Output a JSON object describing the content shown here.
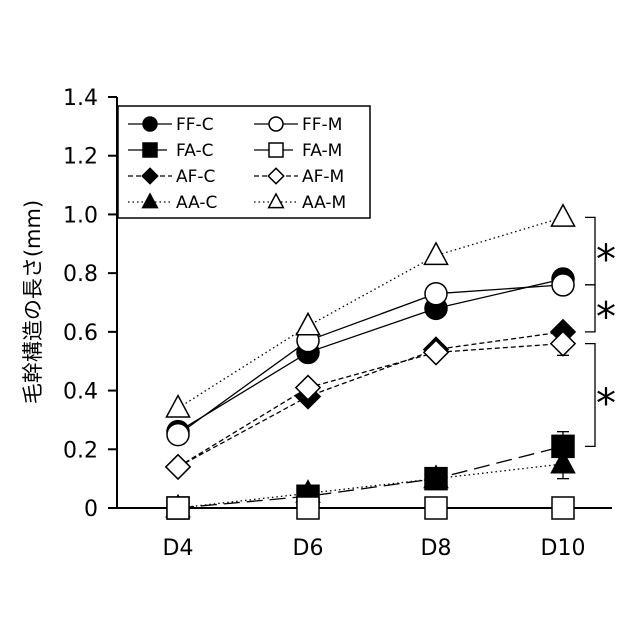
{
  "chart_data": {
    "type": "line",
    "categories": [
      "D4",
      "D6",
      "D8",
      "D10"
    ],
    "ylabel": "毛幹構造の長さ(mm)",
    "ylim": [
      0,
      1.4
    ],
    "yticks": [
      "0",
      "0.2",
      "0.4",
      "0.6",
      "0.8",
      "1.0",
      "1.2",
      "1.4"
    ],
    "yticks_values": [
      0,
      0.2,
      0.4,
      0.6,
      0.8,
      1.0,
      1.2,
      1.4
    ],
    "grid": false,
    "legend_position": "top-left",
    "series": [
      {
        "name": "FF-C",
        "values": [
          0.26,
          0.53,
          0.68,
          0.78
        ],
        "marker": "circle",
        "fill": "black",
        "line": "solid"
      },
      {
        "name": "FF-M",
        "values": [
          0.25,
          0.57,
          0.73,
          0.76
        ],
        "marker": "circle",
        "fill": "white",
        "line": "solid"
      },
      {
        "name": "FA-C",
        "values": [
          0.0,
          0.04,
          0.1,
          0.21
        ],
        "marker": "square",
        "fill": "black",
        "line": "long-dash"
      },
      {
        "name": "FA-M",
        "values": [
          0.0,
          0.0,
          0.0,
          0.0
        ],
        "marker": "square",
        "fill": "white",
        "line": "long-dash"
      },
      {
        "name": "AF-C",
        "values": [
          0.14,
          0.38,
          0.54,
          0.6
        ],
        "marker": "diamond",
        "fill": "black",
        "line": "short-dash"
      },
      {
        "name": "AF-M",
        "values": [
          0.14,
          0.41,
          0.53,
          0.56
        ],
        "marker": "diamond",
        "fill": "white",
        "line": "short-dash"
      },
      {
        "name": "AA-C",
        "values": [
          0.0,
          0.05,
          0.1,
          0.15
        ],
        "marker": "triangle",
        "fill": "black",
        "line": "dotted"
      },
      {
        "name": "AA-M",
        "values": [
          0.34,
          0.62,
          0.86,
          0.99
        ],
        "marker": "triangle",
        "fill": "white",
        "line": "dotted"
      }
    ],
    "annotations": [
      {
        "text": "*",
        "from": 0.99,
        "to": 0.76
      },
      {
        "text": "*",
        "from": 0.76,
        "to": 0.6
      },
      {
        "text": "*",
        "from": 0.56,
        "to": 0.21
      }
    ]
  }
}
